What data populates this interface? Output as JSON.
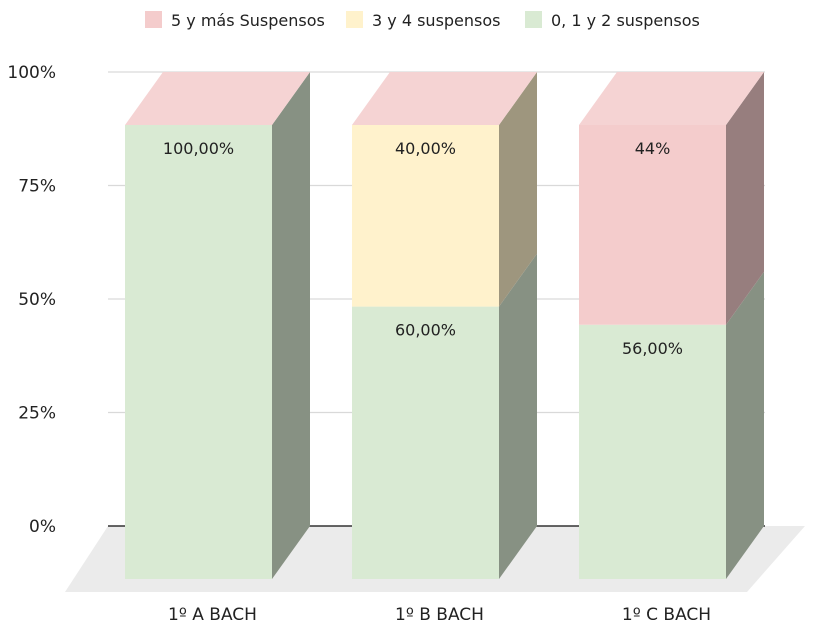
{
  "chart_data": {
    "type": "bar",
    "stacked": true,
    "percent_stacked": true,
    "three_d": true,
    "categories": [
      "1º A BACH",
      "1º B BACH",
      "1º C BACH"
    ],
    "series": [
      {
        "name": "0, 1 y 2 suspensos",
        "values": [
          100,
          60,
          56
        ],
        "labels": [
          "100,00%",
          "60,00%",
          "56,00%"
        ],
        "color": "#d9ead3"
      },
      {
        "name": "3 y 4 suspensos",
        "values": [
          0,
          40,
          0
        ],
        "labels": [
          "",
          "40,00%",
          ""
        ],
        "color": "#fff2cc"
      },
      {
        "name": "5 y más Suspensos",
        "values": [
          0,
          0,
          44
        ],
        "labels": [
          "",
          "",
          "44%"
        ],
        "color": "#f4cccc"
      }
    ],
    "legend_order": [
      "5 y más Suspensos",
      "3 y 4 suspensos",
      "0, 1 y 2 suspensos"
    ],
    "yticks": [
      "0%",
      "25%",
      "50%",
      "75%",
      "100%"
    ],
    "ylim": [
      0,
      100
    ],
    "grid": true,
    "legend_position": "top"
  }
}
